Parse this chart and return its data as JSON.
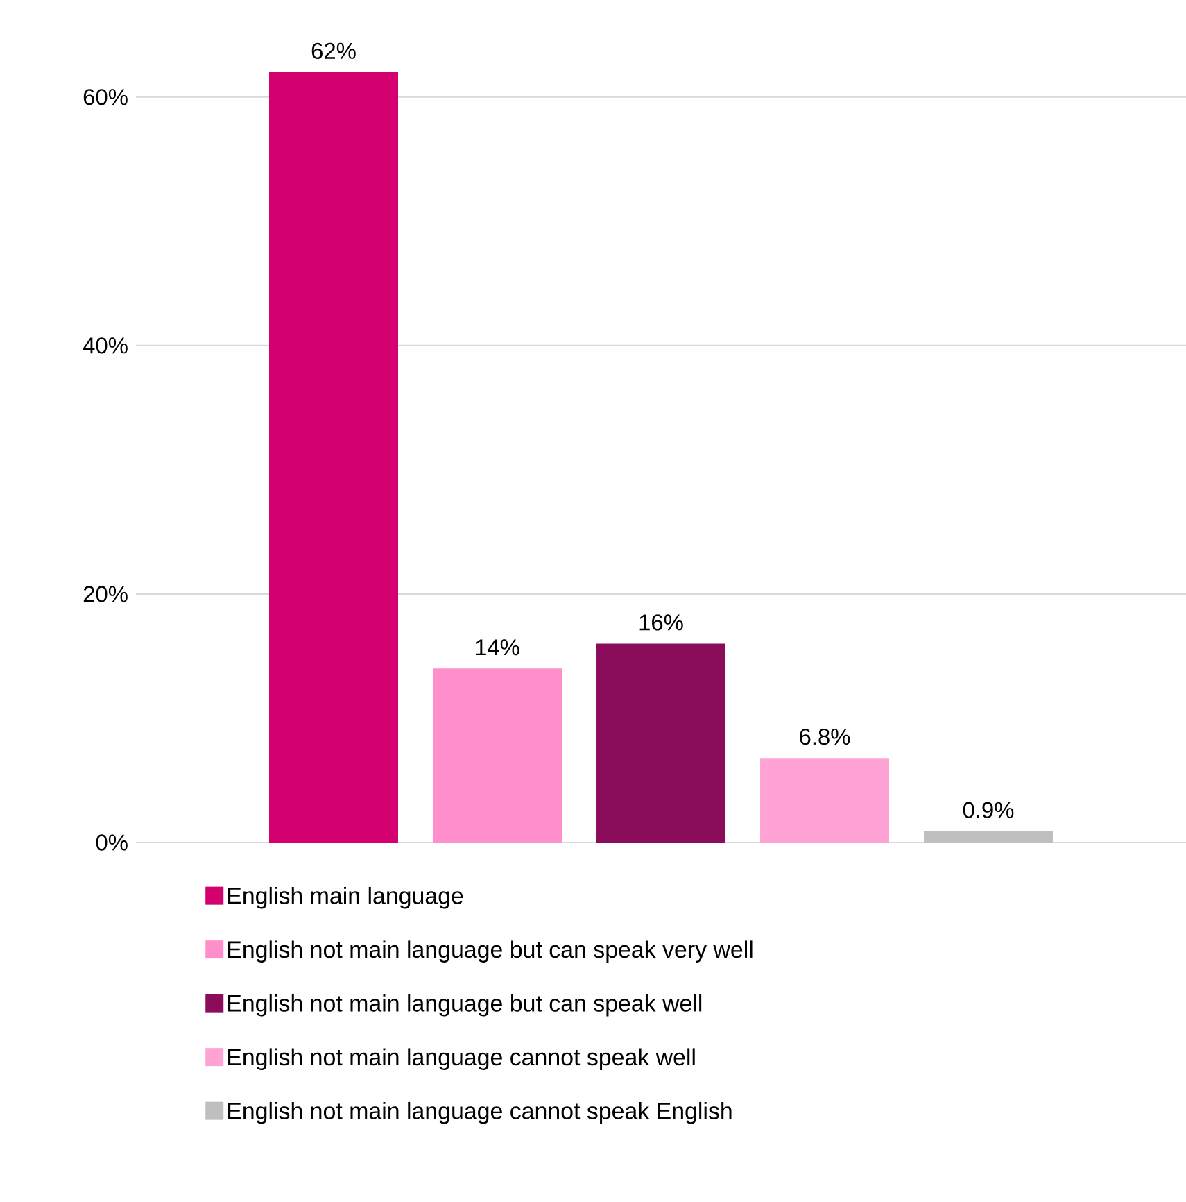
{
  "chart_data": {
    "type": "bar",
    "categories": [
      null
    ],
    "series": [
      {
        "name": "English main language",
        "color": "#d4006f",
        "values": [
          62
        ],
        "value_labels": [
          "62%"
        ]
      },
      {
        "name": "English not main language but can speak very well",
        "color": "#ff8fcc",
        "values": [
          14
        ],
        "value_labels": [
          "14%"
        ]
      },
      {
        "name": "English not main language but can speak well",
        "color": "#8c0c5c",
        "values": [
          16
        ],
        "value_labels": [
          "16%"
        ]
      },
      {
        "name": "English not main language cannot speak well",
        "color": "#ffa3d4",
        "values": [
          6.8
        ],
        "value_labels": [
          "6.8%"
        ]
      },
      {
        "name": "English not main language cannot speak English",
        "color": "#bfbfbf",
        "values": [
          0.9
        ],
        "value_labels": [
          "0.9%"
        ]
      }
    ],
    "yticks": [
      {
        "value": 0,
        "label": "0%"
      },
      {
        "value": 20,
        "label": "20%"
      },
      {
        "value": 40,
        "label": "40%"
      },
      {
        "value": 60,
        "label": "60%"
      }
    ],
    "ylim": [
      0,
      62
    ],
    "grid": "y",
    "legend": "bottom"
  }
}
